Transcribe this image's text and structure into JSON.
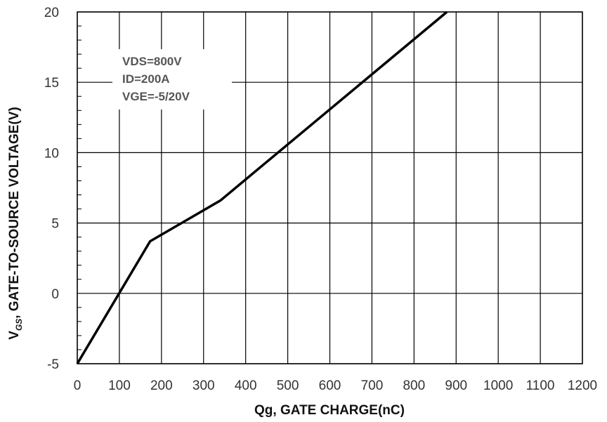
{
  "chart_data": {
    "type": "line",
    "xlabel": "Qg, GATE CHARGE(nC)",
    "ylabel_main": "V",
    "ylabel_sub": "GS",
    "ylabel_rest": ", GATE-TO-SOURCE VOLTAGE(V)",
    "xlim": [
      0,
      1200
    ],
    "ylim": [
      -5,
      20
    ],
    "x_ticks": [
      0,
      100,
      200,
      300,
      400,
      500,
      600,
      700,
      800,
      900,
      1000,
      1100,
      1200
    ],
    "x_tick_labels": [
      "0",
      "100",
      "200",
      "300",
      "400",
      "500",
      "600",
      "700",
      "800",
      "900",
      "1000",
      "1100",
      "1200"
    ],
    "y_ticks": [
      -5,
      0,
      5,
      10,
      15,
      20
    ],
    "y_tick_labels": [
      "-5",
      "0",
      "5",
      "10",
      "15",
      "20"
    ],
    "grid": true,
    "annotations": [
      "VDS=800V",
      "ID=200A",
      "VGE=-5/20V"
    ],
    "series": [
      {
        "color": "#000000",
        "x": [
          0,
          173,
          340,
          878
        ],
        "y": [
          -5,
          3.7,
          6.6,
          20
        ]
      }
    ]
  }
}
